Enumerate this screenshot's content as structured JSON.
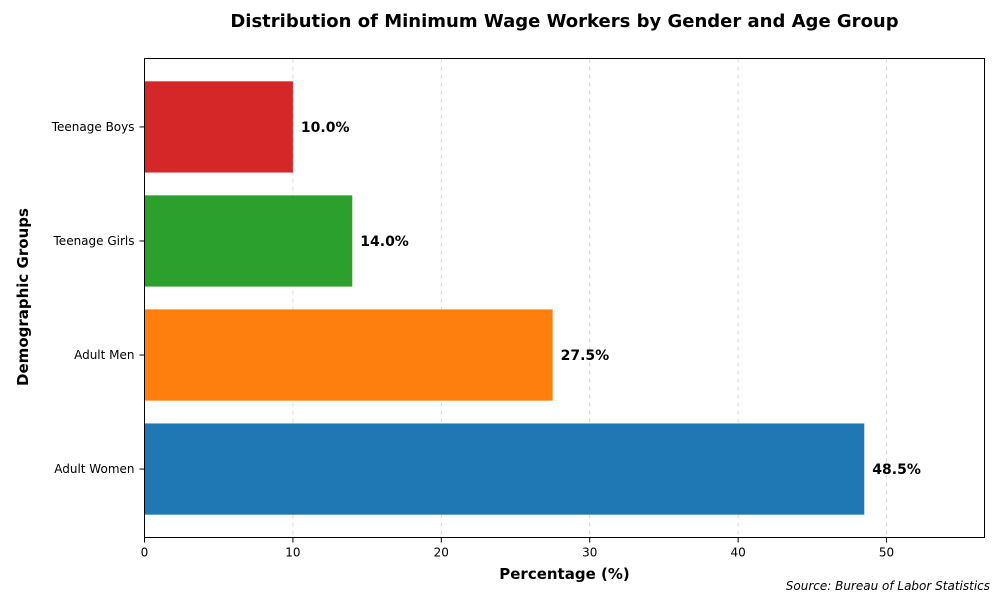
{
  "chart_data": {
    "type": "bar",
    "orientation": "horizontal",
    "title": "Distribution of Minimum Wage Workers by Gender and Age Group",
    "xlabel": "Percentage (%)",
    "ylabel": "Demographic Groups",
    "categories": [
      "Adult Women",
      "Adult Men",
      "Teenage Girls",
      "Teenage Boys"
    ],
    "values": [
      48.5,
      27.5,
      14.0,
      10.0
    ],
    "value_labels": [
      "48.5%",
      "27.5%",
      "14.0%",
      "10.0%"
    ],
    "colors": [
      "#1f77b4",
      "#ff7f0e",
      "#2ca02c",
      "#d62728"
    ],
    "xlim": [
      0,
      56.6
    ],
    "xticks": [
      0,
      10,
      20,
      30,
      40,
      50
    ],
    "grid": "x, dashed",
    "legend": "none"
  },
  "source": "Source: Bureau of Labor Statistics"
}
